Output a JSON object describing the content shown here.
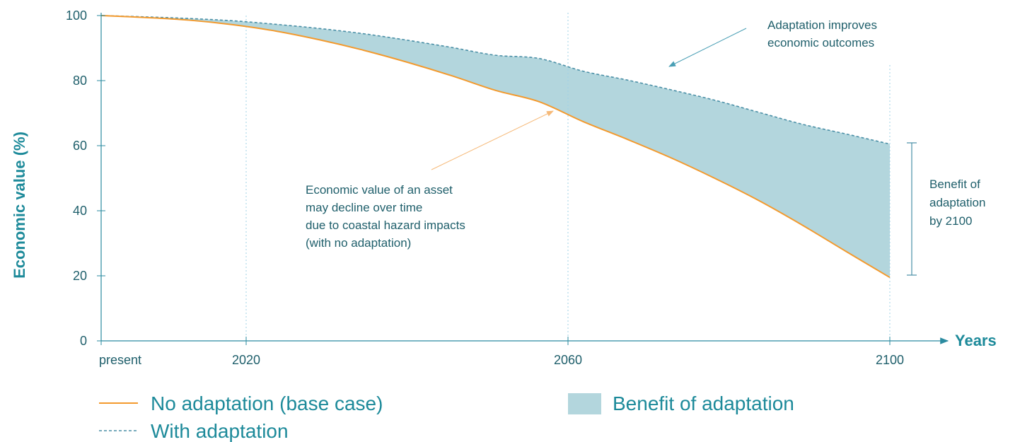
{
  "colors": {
    "base": "#f39a2e",
    "adapt": "#4a8fa6",
    "fill": "#b3d6dd",
    "axis": "#2b8ba0",
    "guide": "#9fd0e6",
    "text": "#1f5f6b",
    "accent": "#1d8a9a"
  },
  "chart_data": {
    "type": "area",
    "xlabel": "Years",
    "ylabel": "Economic value (%)",
    "ylim": [
      0,
      100
    ],
    "yticks": [
      0,
      20,
      40,
      60,
      80,
      100
    ],
    "x_ticks": [
      {
        "label": "present"
      },
      {
        "label": "2020"
      },
      {
        "label": "2060"
      },
      {
        "label": "2100"
      }
    ],
    "grid": false,
    "series": [
      {
        "name": "No adaptation (base case)",
        "style": "solid",
        "points": [
          [
            0,
            100
          ],
          [
            0.1,
            99.4
          ],
          [
            0.2,
            98.6
          ],
          [
            0.3,
            97.2
          ],
          [
            0.4,
            95.2
          ],
          [
            0.5,
            92.5
          ],
          [
            0.6,
            89.3
          ],
          [
            0.7,
            85.6
          ],
          [
            0.8,
            81.5
          ],
          [
            0.9,
            77.0
          ],
          [
            1.0,
            73.5
          ],
          [
            1.1,
            67.4
          ],
          [
            1.2,
            62.0
          ],
          [
            1.3,
            56.3
          ],
          [
            1.4,
            50.0
          ],
          [
            1.5,
            43.2
          ],
          [
            1.6,
            35.6
          ],
          [
            1.7,
            27.5
          ],
          [
            1.8,
            19.5
          ]
        ]
      },
      {
        "name": "With adaptation",
        "style": "dashed",
        "points": [
          [
            0,
            100
          ],
          [
            0.1,
            99.6
          ],
          [
            0.2,
            99.1
          ],
          [
            0.3,
            98.4
          ],
          [
            0.4,
            97.3
          ],
          [
            0.5,
            96.0
          ],
          [
            0.6,
            94.4
          ],
          [
            0.7,
            92.4
          ],
          [
            0.8,
            90.2
          ],
          [
            0.9,
            87.8
          ],
          [
            1.0,
            86.8
          ],
          [
            1.1,
            82.9
          ],
          [
            1.2,
            80.2
          ],
          [
            1.3,
            77.2
          ],
          [
            1.4,
            74.0
          ],
          [
            1.5,
            70.3
          ],
          [
            1.6,
            66.6
          ],
          [
            1.7,
            63.6
          ],
          [
            1.8,
            60.5
          ]
        ]
      }
    ],
    "area": {
      "name": "Benefit of adaptation",
      "between": [
        "No adaptation (base case)",
        "With adaptation"
      ]
    },
    "annotations": [
      {
        "lines": [
          "Adaptation improves",
          "economic outcomes"
        ]
      },
      {
        "lines": [
          "Economic value of an asset",
          "may decline over time",
          "due to coastal hazard impacts",
          "(with no adaptation)"
        ]
      },
      {
        "lines": [
          "Benefit of",
          "adaptation",
          "by 2100"
        ]
      }
    ]
  }
}
